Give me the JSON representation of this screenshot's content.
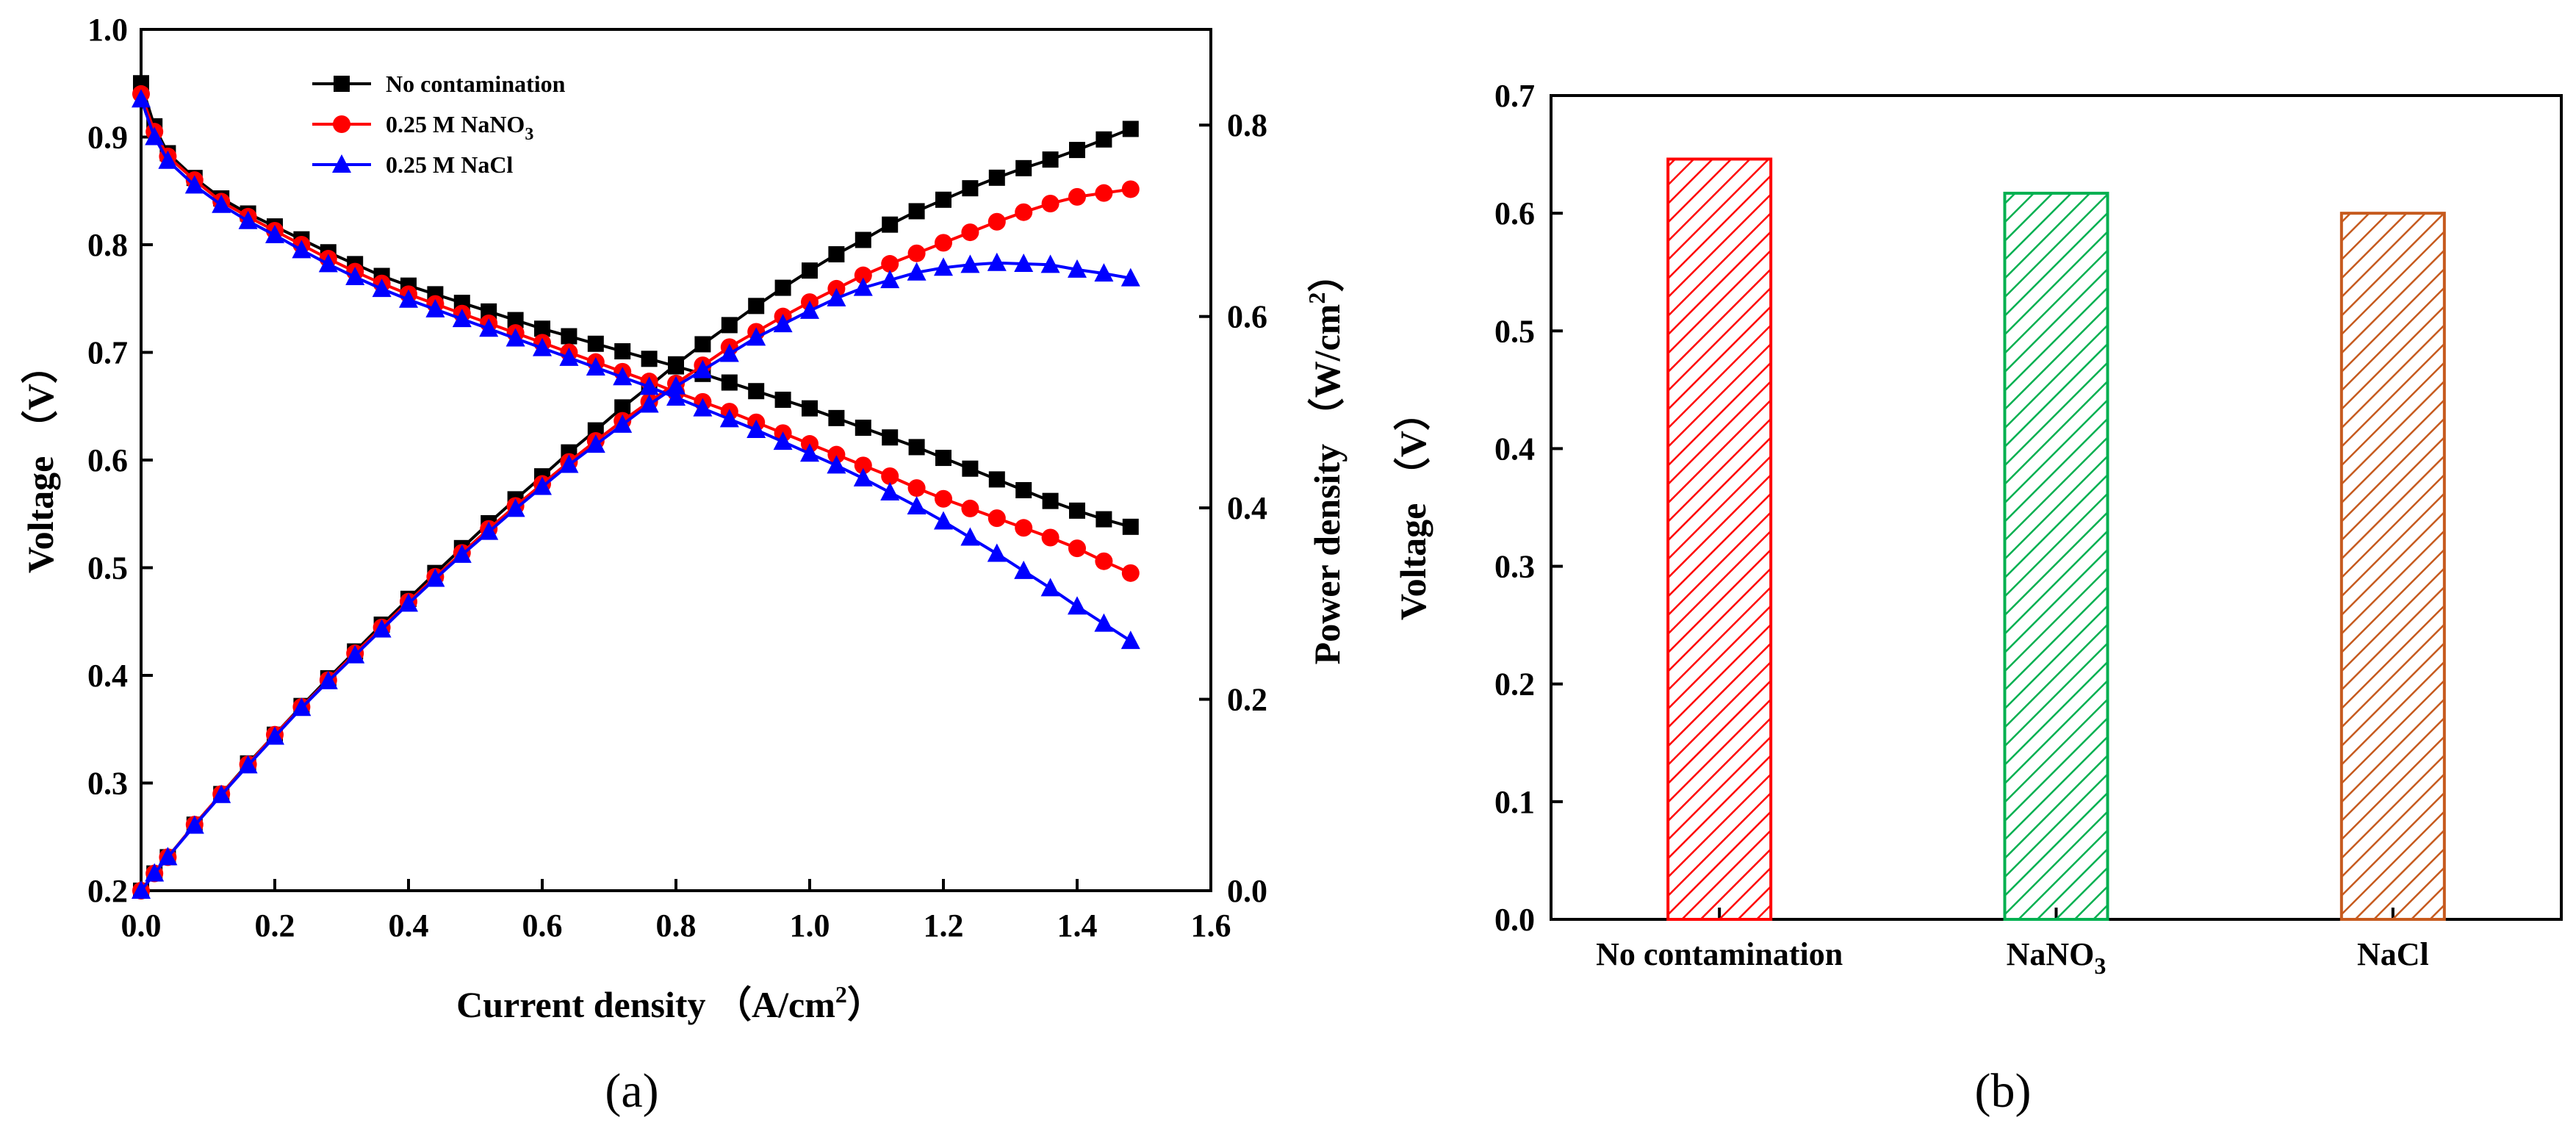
{
  "chart_data": [
    {
      "id": "a",
      "type": "line",
      "panel_label": "(a)",
      "xlabel": "Current density （A/cm",
      "xlabel_sup": "2",
      "xlabel_close": "）",
      "ylabel_left": "Voltage （V）",
      "ylabel_right": "Power density （W/cm",
      "ylabel_right_sup": "2",
      "ylabel_right_close": "）",
      "xlim": [
        0.0,
        1.6
      ],
      "ylim_left": [
        0.2,
        1.0
      ],
      "ylim_right": [
        0.0,
        0.9
      ],
      "x_ticks": [
        "0.0",
        "0.2",
        "0.4",
        "0.6",
        "0.8",
        "1.0",
        "1.2",
        "1.4",
        "1.6"
      ],
      "y_left_ticks": [
        "0.2",
        "0.3",
        "0.4",
        "0.5",
        "0.6",
        "0.7",
        "0.8",
        "0.9",
        "1.0"
      ],
      "y_right_ticks": [
        "0.0",
        "0.2",
        "0.4",
        "0.6",
        "0.8"
      ],
      "legend_position": "top-left",
      "legend": [
        {
          "label": "No contamination",
          "sub": "",
          "color": "#000000",
          "marker": "square"
        },
        {
          "label": "0.25 M  NaNO",
          "sub": "3",
          "color": "#ff0000",
          "marker": "circle"
        },
        {
          "label": "0.25 M  NaCl",
          "sub": "",
          "color": "#0000ff",
          "marker": "triangle"
        }
      ],
      "series": [
        {
          "name": "No contamination",
          "color": "#000000",
          "marker": "square",
          "voltage_points": [
            [
              0.0,
              0.95
            ],
            [
              0.02,
              0.91
            ],
            [
              0.04,
              0.885
            ],
            [
              0.08,
              0.862
            ],
            [
              0.12,
              0.843
            ],
            [
              0.16,
              0.829
            ],
            [
              0.2,
              0.817
            ],
            [
              0.24,
              0.805
            ],
            [
              0.28,
              0.793
            ],
            [
              0.32,
              0.782
            ],
            [
              0.36,
              0.771
            ],
            [
              0.4,
              0.762
            ],
            [
              0.44,
              0.754
            ],
            [
              0.48,
              0.746
            ],
            [
              0.52,
              0.738
            ],
            [
              0.56,
              0.73
            ],
            [
              0.6,
              0.722
            ],
            [
              0.64,
              0.715
            ],
            [
              0.68,
              0.708
            ],
            [
              0.72,
              0.701
            ],
            [
              0.76,
              0.694
            ],
            [
              0.8,
              0.687
            ],
            [
              0.84,
              0.68
            ],
            [
              0.88,
              0.672
            ],
            [
              0.92,
              0.664
            ],
            [
              0.96,
              0.656
            ],
            [
              1.0,
              0.648
            ],
            [
              1.04,
              0.639
            ],
            [
              1.08,
              0.63
            ],
            [
              1.12,
              0.621
            ],
            [
              1.16,
              0.612
            ],
            [
              1.2,
              0.602
            ],
            [
              1.24,
              0.592
            ],
            [
              1.28,
              0.582
            ],
            [
              1.32,
              0.572
            ],
            [
              1.36,
              0.562
            ],
            [
              1.4,
              0.553
            ],
            [
              1.44,
              0.545
            ],
            [
              1.48,
              0.538
            ]
          ],
          "power_points": [
            [
              0.0,
              0.0
            ],
            [
              0.02,
              0.018
            ],
            [
              0.04,
              0.035
            ],
            [
              0.08,
              0.069
            ],
            [
              0.12,
              0.101
            ],
            [
              0.16,
              0.133
            ],
            [
              0.2,
              0.163
            ],
            [
              0.24,
              0.193
            ],
            [
              0.28,
              0.222
            ],
            [
              0.32,
              0.25
            ],
            [
              0.36,
              0.278
            ],
            [
              0.4,
              0.305
            ],
            [
              0.44,
              0.332
            ],
            [
              0.48,
              0.358
            ],
            [
              0.52,
              0.384
            ],
            [
              0.56,
              0.409
            ],
            [
              0.6,
              0.433
            ],
            [
              0.64,
              0.458
            ],
            [
              0.68,
              0.481
            ],
            [
              0.72,
              0.505
            ],
            [
              0.76,
              0.527
            ],
            [
              0.8,
              0.55
            ],
            [
              0.84,
              0.571
            ],
            [
              0.88,
              0.591
            ],
            [
              0.92,
              0.611
            ],
            [
              0.96,
              0.63
            ],
            [
              1.0,
              0.648
            ],
            [
              1.04,
              0.665
            ],
            [
              1.08,
              0.68
            ],
            [
              1.12,
              0.696
            ],
            [
              1.16,
              0.71
            ],
            [
              1.2,
              0.722
            ],
            [
              1.24,
              0.734
            ],
            [
              1.28,
              0.745
            ],
            [
              1.32,
              0.755
            ],
            [
              1.36,
              0.764
            ],
            [
              1.4,
              0.774
            ],
            [
              1.44,
              0.785
            ],
            [
              1.48,
              0.796
            ]
          ]
        },
        {
          "name": "0.25 M NaNO3",
          "color": "#ff0000",
          "marker": "circle",
          "voltage_points": [
            [
              0.0,
              0.94
            ],
            [
              0.02,
              0.905
            ],
            [
              0.04,
              0.882
            ],
            [
              0.08,
              0.86
            ],
            [
              0.12,
              0.84
            ],
            [
              0.16,
              0.826
            ],
            [
              0.2,
              0.813
            ],
            [
              0.24,
              0.8
            ],
            [
              0.28,
              0.787
            ],
            [
              0.32,
              0.775
            ],
            [
              0.36,
              0.764
            ],
            [
              0.4,
              0.754
            ],
            [
              0.44,
              0.745
            ],
            [
              0.48,
              0.736
            ],
            [
              0.52,
              0.727
            ],
            [
              0.56,
              0.718
            ],
            [
              0.6,
              0.709
            ],
            [
              0.64,
              0.7
            ],
            [
              0.68,
              0.691
            ],
            [
              0.72,
              0.682
            ],
            [
              0.76,
              0.673
            ],
            [
              0.8,
              0.663
            ],
            [
              0.84,
              0.654
            ],
            [
              0.88,
              0.645
            ],
            [
              0.92,
              0.635
            ],
            [
              0.96,
              0.625
            ],
            [
              1.0,
              0.615
            ],
            [
              1.04,
              0.605
            ],
            [
              1.08,
              0.595
            ],
            [
              1.12,
              0.585
            ],
            [
              1.16,
              0.574
            ],
            [
              1.2,
              0.564
            ],
            [
              1.24,
              0.555
            ],
            [
              1.28,
              0.546
            ],
            [
              1.32,
              0.537
            ],
            [
              1.36,
              0.528
            ],
            [
              1.4,
              0.518
            ],
            [
              1.44,
              0.506
            ],
            [
              1.48,
              0.495
            ]
          ],
          "power_points": [
            [
              0.0,
              0.0
            ],
            [
              0.02,
              0.018
            ],
            [
              0.04,
              0.035
            ],
            [
              0.08,
              0.069
            ],
            [
              0.12,
              0.101
            ],
            [
              0.16,
              0.132
            ],
            [
              0.2,
              0.163
            ],
            [
              0.24,
              0.192
            ],
            [
              0.28,
              0.22
            ],
            [
              0.32,
              0.248
            ],
            [
              0.36,
              0.275
            ],
            [
              0.4,
              0.302
            ],
            [
              0.44,
              0.328
            ],
            [
              0.48,
              0.353
            ],
            [
              0.52,
              0.378
            ],
            [
              0.56,
              0.402
            ],
            [
              0.6,
              0.425
            ],
            [
              0.64,
              0.448
            ],
            [
              0.68,
              0.47
            ],
            [
              0.72,
              0.491
            ],
            [
              0.76,
              0.511
            ],
            [
              0.8,
              0.53
            ],
            [
              0.84,
              0.549
            ],
            [
              0.88,
              0.568
            ],
            [
              0.92,
              0.584
            ],
            [
              0.96,
              0.6
            ],
            [
              1.0,
              0.615
            ],
            [
              1.04,
              0.629
            ],
            [
              1.08,
              0.643
            ],
            [
              1.12,
              0.655
            ],
            [
              1.16,
              0.666
            ],
            [
              1.2,
              0.677
            ],
            [
              1.24,
              0.688
            ],
            [
              1.28,
              0.699
            ],
            [
              1.32,
              0.709
            ],
            [
              1.36,
              0.718
            ],
            [
              1.4,
              0.725
            ],
            [
              1.44,
              0.729
            ],
            [
              1.48,
              0.733
            ]
          ]
        },
        {
          "name": "0.25 M NaCl",
          "color": "#0000ff",
          "marker": "triangle",
          "voltage_points": [
            [
              0.0,
              0.935
            ],
            [
              0.02,
              0.9
            ],
            [
              0.04,
              0.878
            ],
            [
              0.08,
              0.855
            ],
            [
              0.12,
              0.837
            ],
            [
              0.16,
              0.822
            ],
            [
              0.2,
              0.809
            ],
            [
              0.24,
              0.795
            ],
            [
              0.28,
              0.782
            ],
            [
              0.32,
              0.77
            ],
            [
              0.36,
              0.759
            ],
            [
              0.4,
              0.749
            ],
            [
              0.44,
              0.74
            ],
            [
              0.48,
              0.731
            ],
            [
              0.52,
              0.722
            ],
            [
              0.56,
              0.713
            ],
            [
              0.6,
              0.704
            ],
            [
              0.64,
              0.695
            ],
            [
              0.68,
              0.686
            ],
            [
              0.72,
              0.677
            ],
            [
              0.76,
              0.668
            ],
            [
              0.8,
              0.658
            ],
            [
              0.84,
              0.648
            ],
            [
              0.88,
              0.638
            ],
            [
              0.92,
              0.628
            ],
            [
              0.96,
              0.617
            ],
            [
              1.0,
              0.606
            ],
            [
              1.04,
              0.595
            ],
            [
              1.08,
              0.583
            ],
            [
              1.12,
              0.57
            ],
            [
              1.16,
              0.557
            ],
            [
              1.2,
              0.543
            ],
            [
              1.24,
              0.528
            ],
            [
              1.28,
              0.513
            ],
            [
              1.32,
              0.497
            ],
            [
              1.36,
              0.481
            ],
            [
              1.4,
              0.464
            ],
            [
              1.44,
              0.448
            ],
            [
              1.48,
              0.432
            ]
          ],
          "power_points": [
            [
              0.0,
              0.0
            ],
            [
              0.02,
              0.018
            ],
            [
              0.04,
              0.035
            ],
            [
              0.08,
              0.068
            ],
            [
              0.12,
              0.1
            ],
            [
              0.16,
              0.131
            ],
            [
              0.2,
              0.161
            ],
            [
              0.24,
              0.191
            ],
            [
              0.28,
              0.219
            ],
            [
              0.32,
              0.246
            ],
            [
              0.36,
              0.273
            ],
            [
              0.4,
              0.3
            ],
            [
              0.44,
              0.326
            ],
            [
              0.48,
              0.351
            ],
            [
              0.52,
              0.375
            ],
            [
              0.56,
              0.399
            ],
            [
              0.6,
              0.422
            ],
            [
              0.64,
              0.445
            ],
            [
              0.68,
              0.466
            ],
            [
              0.72,
              0.487
            ],
            [
              0.76,
              0.508
            ],
            [
              0.8,
              0.527
            ],
            [
              0.84,
              0.544
            ],
            [
              0.88,
              0.561
            ],
            [
              0.92,
              0.578
            ],
            [
              0.96,
              0.592
            ],
            [
              1.0,
              0.606
            ],
            [
              1.04,
              0.619
            ],
            [
              1.08,
              0.63
            ],
            [
              1.12,
              0.638
            ],
            [
              1.16,
              0.646
            ],
            [
              1.2,
              0.651
            ],
            [
              1.24,
              0.654
            ],
            [
              1.28,
              0.656
            ],
            [
              1.32,
              0.655
            ],
            [
              1.36,
              0.654
            ],
            [
              1.4,
              0.649
            ],
            [
              1.44,
              0.645
            ],
            [
              1.48,
              0.64
            ]
          ]
        }
      ]
    },
    {
      "id": "b",
      "type": "bar",
      "panel_label": "(b)",
      "ylabel": "Voltage （V）",
      "ylim": [
        0.0,
        0.7
      ],
      "y_ticks": [
        "0.0",
        "0.1",
        "0.2",
        "0.3",
        "0.4",
        "0.5",
        "0.6",
        "0.7"
      ],
      "categories": [
        {
          "label": "No contamination",
          "sub": ""
        },
        {
          "label": "NaNO",
          "sub": "3"
        },
        {
          "label": "NaCl",
          "sub": ""
        }
      ],
      "values": [
        0.646,
        0.617,
        0.6
      ],
      "colors": [
        "#ff0000",
        "#00b050",
        "#c65a1e"
      ],
      "fill_pattern": "diagonal-hatch"
    }
  ]
}
